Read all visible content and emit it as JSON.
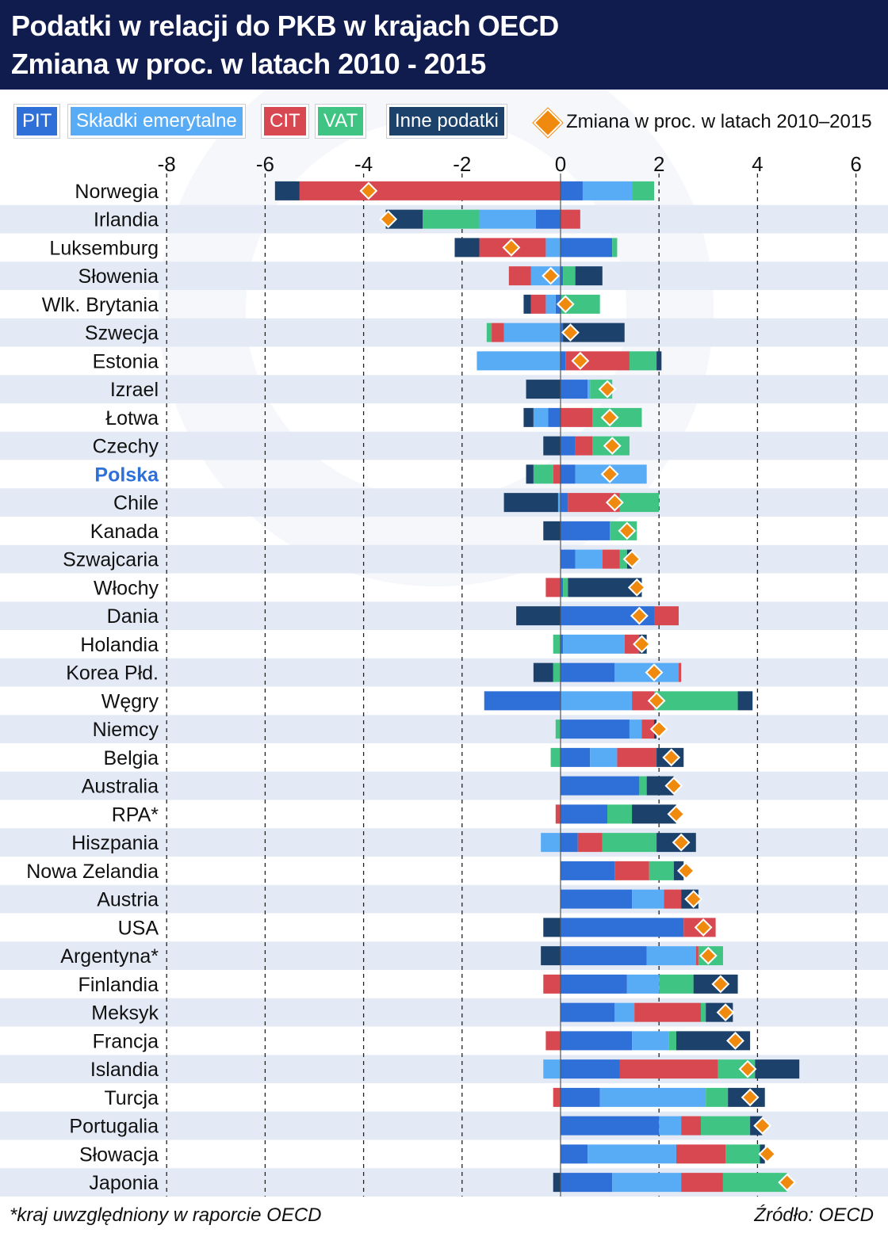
{
  "header": {
    "title": "Podatki w relacji do PKB w krajach OECD",
    "subtitle": "Zmiana w proc. w latach 2010 - 2015"
  },
  "legend": {
    "items": [
      {
        "label": "PIT",
        "color": "#2e6fd8"
      },
      {
        "label": "Składki emerytalne",
        "color": "#58acf5"
      },
      {
        "label": "CIT",
        "color": "#d84850"
      },
      {
        "label": "VAT",
        "color": "#3fc483"
      },
      {
        "label": "Inne podatki",
        "color": "#1c416b"
      }
    ],
    "marker_label": "Zmiana w proc. w latach 2010–2015",
    "marker_color": "#f08a0e"
  },
  "chart_data": {
    "type": "bar",
    "orientation": "horizontal",
    "stacked": true,
    "xlim": [
      -8,
      6
    ],
    "x_ticks": [
      -8,
      -6,
      -4,
      -2,
      0,
      2,
      4,
      6
    ],
    "categories": [
      "Norwegia",
      "Irlandia",
      "Luksemburg",
      "Słowenia",
      "Wlk. Brytania",
      "Szwecja",
      "Estonia",
      "Izrael",
      "Łotwa",
      "Czechy",
      "Polska",
      "Chile",
      "Kanada",
      "Szwajcaria",
      "Włochy",
      "Dania",
      "Holandia",
      "Korea Płd.",
      "Węgry",
      "Niemcy",
      "Belgia",
      "Australia",
      "RPA*",
      "Hiszpania",
      "Nowa Zelandia",
      "Austria",
      "USA",
      "Argentyna*",
      "Finlandia",
      "Meksyk",
      "Francja",
      "Islandia",
      "Turcja",
      "Portugalia",
      "Słowacja",
      "Japonia"
    ],
    "highlight": "Polska",
    "highlight_color": "#2e6fd8",
    "series": [
      {
        "name": "PIT",
        "color": "#2e6fd8",
        "values": [
          0.45,
          -0.5,
          1.05,
          0.05,
          -0.1,
          0.05,
          0.1,
          0.55,
          -0.25,
          0.3,
          0.3,
          0.15,
          1.0,
          0.3,
          0.05,
          1.9,
          0.05,
          1.1,
          -1.55,
          1.4,
          0.6,
          1.6,
          0.95,
          0.35,
          1.1,
          1.45,
          2.5,
          1.75,
          1.35,
          1.1,
          1.45,
          1.2,
          0.8,
          2.0,
          0.55,
          1.05
        ]
      },
      {
        "name": "Składki emerytalne",
        "color": "#58acf5",
        "values": [
          1.0,
          -1.15,
          -0.3,
          -0.6,
          -0.2,
          -1.15,
          -1.7,
          0.05,
          -0.3,
          0.0,
          1.45,
          -0.05,
          0.0,
          0.55,
          0.0,
          0.0,
          1.25,
          1.3,
          1.45,
          0.25,
          0.55,
          0.0,
          0.0,
          -0.4,
          0.0,
          0.65,
          0.0,
          1.0,
          0.65,
          0.4,
          0.75,
          -0.35,
          2.15,
          0.45,
          1.8,
          1.4
        ]
      },
      {
        "name": "CIT",
        "color": "#d84850",
        "values": [
          -5.3,
          0.4,
          -1.35,
          -0.45,
          -0.3,
          -0.25,
          1.3,
          0.0,
          0.65,
          0.35,
          -0.15,
          1.05,
          0.0,
          0.35,
          -0.3,
          0.5,
          0.3,
          0.05,
          0.45,
          0.25,
          0.8,
          0.0,
          -0.1,
          0.5,
          0.7,
          0.35,
          0.65,
          0.05,
          -0.35,
          1.35,
          -0.3,
          2.0,
          -0.15,
          0.4,
          1.0,
          0.85
        ]
      },
      {
        "name": "VAT",
        "color": "#3fc483",
        "values": [
          0.45,
          -1.15,
          0.1,
          0.25,
          0.8,
          -0.1,
          0.55,
          0.45,
          1.0,
          0.75,
          -0.4,
          0.8,
          0.55,
          0.15,
          0.1,
          0.0,
          -0.15,
          -0.15,
          1.7,
          -0.1,
          -0.2,
          0.15,
          0.5,
          1.1,
          0.5,
          0.0,
          0.0,
          0.5,
          0.7,
          0.1,
          0.15,
          0.75,
          0.45,
          1.0,
          0.7,
          1.3
        ]
      },
      {
        "name": "Inne podatki",
        "color": "#1c416b",
        "values": [
          -0.5,
          -0.75,
          -0.5,
          0.55,
          -0.15,
          1.25,
          0.1,
          -0.7,
          -0.2,
          -0.35,
          -0.15,
          -1.1,
          -0.35,
          0.1,
          1.5,
          -0.9,
          0.15,
          -0.4,
          0.3,
          0.05,
          0.55,
          0.55,
          0.9,
          0.8,
          0.2,
          0.35,
          -0.35,
          -0.4,
          0.9,
          0.55,
          1.5,
          0.9,
          0.75,
          0.25,
          0.1,
          -0.15
        ]
      }
    ],
    "change_marker": {
      "label": "Zmiana w proc. w latach 2010–2015",
      "values": [
        -3.9,
        -3.5,
        -1.0,
        -0.2,
        0.1,
        0.2,
        0.4,
        0.95,
        1.0,
        1.05,
        1.0,
        1.1,
        1.35,
        1.45,
        1.55,
        1.6,
        1.65,
        1.9,
        1.95,
        2.0,
        2.25,
        2.3,
        2.35,
        2.45,
        2.55,
        2.7,
        2.9,
        3.0,
        3.25,
        3.35,
        3.55,
        3.8,
        3.85,
        4.1,
        4.2,
        4.6
      ]
    }
  },
  "footnote": "*kraj uwzględniony w raporcie OECD",
  "source": "Źródło: OECD"
}
